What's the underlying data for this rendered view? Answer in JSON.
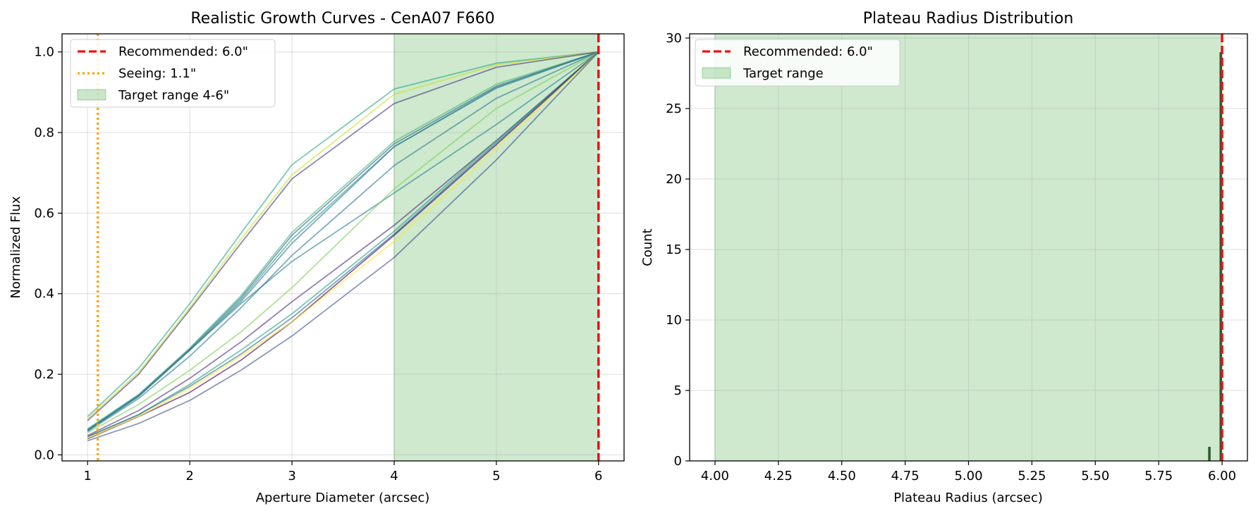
{
  "chart_data": [
    {
      "type": "line",
      "title": "Realistic Growth Curves - CenA07 F660",
      "xlabel": "Aperture Diameter (arcsec)",
      "ylabel": "Normalized Flux",
      "xlim": [
        0.75,
        6.25
      ],
      "ylim": [
        -0.015,
        1.045
      ],
      "xticks": [
        1,
        2,
        3,
        4,
        5,
        6
      ],
      "xtick_labels": [
        "1",
        "2",
        "3",
        "4",
        "5",
        "6"
      ],
      "yticks": [
        0.0,
        0.2,
        0.4,
        0.6,
        0.8,
        1.0
      ],
      "ytick_labels": [
        "0.0",
        "0.2",
        "0.4",
        "0.6",
        "0.8",
        "1.0"
      ],
      "grid": true,
      "legend_loc": "top-left",
      "legend": [
        "Recommended: 6.0\"",
        "Seeing: 1.1\"",
        "Target range 4-6\""
      ],
      "x": [
        1,
        1.5,
        2,
        2.5,
        3,
        4,
        5,
        6
      ],
      "series": [
        {
          "name": "curve-01",
          "color": "#21a585",
          "values": [
            0.095,
            0.215,
            0.375,
            0.55,
            0.72,
            0.908,
            0.972,
            1.0
          ]
        },
        {
          "name": "curve-02",
          "color": "#c8e020",
          "values": [
            0.09,
            0.205,
            0.365,
            0.535,
            0.695,
            0.895,
            0.968,
            1.0
          ]
        },
        {
          "name": "curve-03",
          "color": "#46337e",
          "values": [
            0.085,
            0.2,
            0.36,
            0.525,
            0.685,
            0.872,
            0.962,
            1.0
          ]
        },
        {
          "name": "curve-04",
          "color": "#38b977",
          "values": [
            0.065,
            0.15,
            0.265,
            0.395,
            0.552,
            0.778,
            0.92,
            1.0
          ]
        },
        {
          "name": "curve-05",
          "color": "#365c8d",
          "values": [
            0.062,
            0.148,
            0.263,
            0.39,
            0.545,
            0.772,
            0.915,
            1.0
          ]
        },
        {
          "name": "curve-06",
          "color": "#1f9a8a",
          "values": [
            0.06,
            0.145,
            0.26,
            0.385,
            0.535,
            0.765,
            0.91,
            1.0
          ]
        },
        {
          "name": "curve-07",
          "color": "#2c728e",
          "values": [
            0.06,
            0.145,
            0.26,
            0.38,
            0.525,
            0.765,
            0.912,
            1.0
          ]
        },
        {
          "name": "curve-08",
          "color": "#2a788e",
          "values": [
            0.058,
            0.14,
            0.245,
            0.365,
            0.495,
            0.718,
            0.885,
            1.0
          ]
        },
        {
          "name": "curve-09",
          "color": "#277f8e",
          "values": [
            0.062,
            0.148,
            0.26,
            0.375,
            0.48,
            0.65,
            0.82,
            1.0
          ]
        },
        {
          "name": "curve-10",
          "color": "#7ad151",
          "values": [
            0.055,
            0.125,
            0.21,
            0.305,
            0.415,
            0.66,
            0.86,
            1.0
          ]
        },
        {
          "name": "curve-11",
          "color": "#482878",
          "values": [
            0.048,
            0.11,
            0.19,
            0.28,
            0.38,
            0.57,
            0.78,
            1.0
          ]
        },
        {
          "name": "curve-12",
          "color": "#1e9c89",
          "values": [
            0.045,
            0.1,
            0.175,
            0.26,
            0.35,
            0.555,
            0.78,
            1.0
          ]
        },
        {
          "name": "curve-13",
          "color": "#31688e",
          "values": [
            0.045,
            0.1,
            0.17,
            0.25,
            0.34,
            0.548,
            0.775,
            1.0
          ]
        },
        {
          "name": "curve-14",
          "color": "#440154",
          "values": [
            0.04,
            0.095,
            0.155,
            0.235,
            0.33,
            0.545,
            0.77,
            1.0
          ]
        },
        {
          "name": "curve-15",
          "color": "#fde725",
          "values": [
            0.042,
            0.095,
            0.165,
            0.245,
            0.33,
            0.53,
            0.76,
            1.0
          ]
        },
        {
          "name": "curve-16",
          "color": "#3b528b",
          "values": [
            0.035,
            0.078,
            0.135,
            0.21,
            0.295,
            0.49,
            0.732,
            1.0
          ]
        }
      ],
      "vlines": [
        {
          "name": "recommended-line",
          "x": 6.0,
          "color": "#ee1111",
          "style": "dashed"
        },
        {
          "name": "seeing-line",
          "x": 1.1,
          "color": "#ffa500",
          "style": "dotted"
        }
      ],
      "span": {
        "x0": 4,
        "x1": 6,
        "color": "#2ca02c"
      }
    },
    {
      "type": "bar",
      "title": "Plateau Radius Distribution",
      "xlabel": "Plateau Radius (arcsec)",
      "ylabel": "Count",
      "xlim": [
        3.9,
        6.1
      ],
      "ylim": [
        0,
        30.3
      ],
      "xticks": [
        4.0,
        4.25,
        4.5,
        4.75,
        5.0,
        5.25,
        5.5,
        5.75,
        6.0
      ],
      "xtick_labels": [
        "4.00",
        "4.25",
        "4.50",
        "4.75",
        "5.00",
        "5.25",
        "5.50",
        "5.75",
        "6.00"
      ],
      "yticks": [
        0,
        5,
        10,
        15,
        20,
        25,
        30
      ],
      "ytick_labels": [
        "0",
        "5",
        "10",
        "15",
        "20",
        "25",
        "30"
      ],
      "grid": true,
      "legend_loc": "top-left",
      "legend": [
        "Recommended: 6.0\"",
        "Target range"
      ],
      "bins": [
        {
          "x0": 5.945,
          "x1": 5.955,
          "count": 1
        },
        {
          "x0": 5.99,
          "x1": 6.0,
          "count": 29
        }
      ],
      "bar_color": "#1f4a1f",
      "vlines": [
        {
          "name": "recommended-line",
          "x": 6.0,
          "color": "#ee1111",
          "style": "dashed"
        }
      ],
      "span": {
        "x0": 4,
        "x1": 6,
        "color": "#2ca02c"
      }
    }
  ]
}
